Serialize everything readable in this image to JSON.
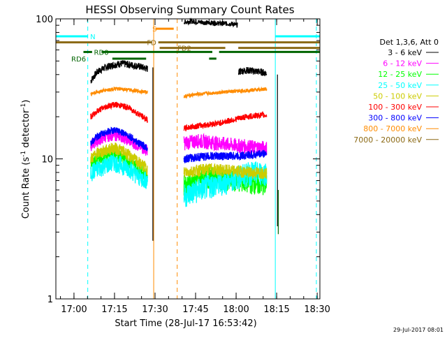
{
  "chart_data": {
    "type": "line",
    "title": "HESSI Observing Summary Count Rates",
    "xlabel": "Start Time (28-Jul-17 16:53:42)",
    "ylabel_main": "Count Rate (s",
    "ylabel_sup1": "-1",
    "ylabel_mid": " detector",
    "ylabel_sup2": "-1",
    "ylabel_end": ")",
    "yscale": "log",
    "ylim": [
      1,
      100
    ],
    "xlim_min": [
      -0.4,
      97.3
    ],
    "x_ticks": [
      {
        "min": 6.3,
        "label": "17:00"
      },
      {
        "min": 21.3,
        "label": "17:15"
      },
      {
        "min": 36.3,
        "label": "17:30"
      },
      {
        "min": 51.3,
        "label": "17:45"
      },
      {
        "min": 66.3,
        "label": "18:00"
      },
      {
        "min": 81.3,
        "label": "18:15"
      },
      {
        "min": 96.3,
        "label": "18:30"
      }
    ],
    "y_ticks": [
      {
        "value": 1,
        "label": "1"
      },
      {
        "value": 10,
        "label": "10"
      },
      {
        "value": 100,
        "label": "100"
      }
    ],
    "legend_header": "Det 1,3,6, Att 0",
    "legend_position": "right",
    "timestamp": "29-Jul-2017 08:01",
    "series": [
      {
        "name": "3 - 6 keV",
        "color": "#000000",
        "segments": [
          {
            "x": [
              12.5,
              15,
              18,
              21,
              24,
              27,
              30,
              33.5
            ],
            "y": [
              36,
              42,
              45,
              47,
              48,
              47,
              46,
              44
            ],
            "noise": 0.06
          },
          {
            "x": [
              47,
              50,
              55,
              60,
              65,
              66.9
            ],
            "y": [
              95,
              96,
              94,
              93,
              92,
              90
            ],
            "noise": 0.04
          },
          {
            "x": [
              67.2,
              70,
              75,
              77.6
            ],
            "y": [
              42,
              43,
              42,
              41
            ],
            "noise": 0.06
          }
        ]
      },
      {
        "name": "6 - 12 keV",
        "color": "#ff00ff",
        "segments": [
          {
            "x": [
              12.5,
              15,
              18,
              21,
              24,
              27,
              30,
              33.5
            ],
            "y": [
              12.5,
              13.5,
              14.5,
              15,
              14.5,
              13.5,
              12.5,
              11.5
            ],
            "noise": 0.1
          },
          {
            "x": [
              47,
              52,
              57,
              62,
              67,
              72,
              77.6
            ],
            "y": [
              13,
              13.5,
              13.2,
              12.8,
              12.5,
              12.2,
              12
            ],
            "noise": 0.12
          }
        ]
      },
      {
        "name": "12 - 25 keV",
        "color": "#00ff00",
        "segments": [
          {
            "x": [
              12.5,
              15,
              18,
              21,
              24,
              27,
              30,
              33.5
            ],
            "y": [
              9,
              10,
              10.5,
              11,
              10.5,
              9.5,
              8.5,
              7.5
            ],
            "noise": 0.12
          },
          {
            "x": [
              47,
              52,
              57,
              62,
              67,
              72,
              77.6
            ],
            "y": [
              6.5,
              7,
              7.5,
              7.2,
              7,
              6.8,
              6.5
            ],
            "noise": 0.18
          }
        ]
      },
      {
        "name": "25 - 50 keV",
        "color": "#00ffff",
        "segments": [
          {
            "x": [
              12.5,
              15,
              18,
              21,
              24,
              27,
              30,
              33.5
            ],
            "y": [
              8,
              8.5,
              9,
              9.5,
              9,
              8.5,
              7.5,
              7
            ],
            "noise": 0.15
          },
          {
            "x": [
              47,
              52,
              57,
              62,
              67,
              72,
              77.6
            ],
            "y": [
              5.5,
              6,
              6.5,
              6.8,
              7.5,
              8,
              8
            ],
            "noise": 0.2
          }
        ]
      },
      {
        "name": "50 - 100 keV",
        "color": "#cccc00",
        "segments": [
          {
            "x": [
              12.5,
              15,
              18,
              21,
              24,
              27,
              30,
              33.5
            ],
            "y": [
              10,
              11,
              11.5,
              12,
              11.5,
              10.5,
              9.5,
              8.5
            ],
            "noise": 0.1
          },
          {
            "x": [
              47,
              52,
              57,
              62,
              67,
              72,
              77.6
            ],
            "y": [
              8,
              8.3,
              8.5,
              8.3,
              8.2,
              8,
              8
            ],
            "noise": 0.1
          }
        ]
      },
      {
        "name": "100 - 300 keV",
        "color": "#ff0000",
        "segments": [
          {
            "x": [
              12.5,
              15,
              18,
              21,
              24,
              27,
              30,
              33.5
            ],
            "y": [
              20,
              22,
              23.5,
              24.5,
              24,
              23,
              21,
              19
            ],
            "noise": 0.05
          },
          {
            "x": [
              47,
              50,
              55,
              60,
              65,
              70,
              75,
              77.6
            ],
            "y": [
              16.5,
              17,
              17.5,
              18,
              19,
              20,
              20.5,
              20.5
            ],
            "noise": 0.05
          }
        ]
      },
      {
        "name": "300 - 800 keV",
        "color": "#0000ff",
        "segments": [
          {
            "x": [
              12.5,
              15,
              18,
              21,
              24,
              27,
              30,
              33.5
            ],
            "y": [
              13,
              14.5,
              15.5,
              16,
              15.5,
              14.5,
              13,
              12
            ],
            "noise": 0.06
          },
          {
            "x": [
              47,
              52,
              57,
              62,
              67,
              72,
              77.6
            ],
            "y": [
              10,
              10.3,
              10.5,
              10.5,
              10.5,
              10.7,
              11
            ],
            "noise": 0.07
          }
        ]
      },
      {
        "name": "800 - 7000 keV",
        "color": "#ff8c00",
        "segments": [
          {
            "x": [
              12.5,
              15,
              18,
              21,
              24,
              27,
              30,
              33.5
            ],
            "y": [
              29,
              30,
              31,
              31.5,
              31.5,
              31,
              30.5,
              30
            ],
            "noise": 0.03
          },
          {
            "x": [
              47,
              52,
              57,
              62,
              67,
              72,
              77.6
            ],
            "y": [
              28,
              29,
              29.5,
              30,
              30.5,
              31,
              31.5
            ],
            "noise": 0.03
          }
        ]
      },
      {
        "name": "7000 - 20000 keV",
        "color": "#8b6914",
        "segments": []
      }
    ],
    "bars": [
      {
        "label": "N",
        "color": "#00ffff",
        "y": 75,
        "ranges": [
          [
            -0.4,
            11.4
          ],
          [
            80.8,
            97.3
          ]
        ],
        "label_min": 12.3
      },
      {
        "label": "S",
        "color": "#ff8c00",
        "y": 85,
        "ranges": [
          [
            36.5,
            43.2
          ]
        ],
        "label_min": 35.3
      },
      {
        "label": "FD",
        "color": "#8b6914",
        "y": 68,
        "ranges": [
          [
            -0.4,
            35
          ],
          [
            37.5,
            97.3
          ]
        ],
        "label_min": 33.3
      },
      {
        "label": "FD2",
        "color": "#8b6914",
        "y": 62,
        "ranges": [
          [
            38,
            62.3
          ],
          [
            67.1,
            97.3
          ]
        ],
        "label_min": 44.6
      },
      {
        "label": "RD0",
        "color": "#006400",
        "y": 58,
        "ranges": [
          [
            9.8,
            13
          ],
          [
            16.5,
            57.5
          ],
          [
            60,
            97.3
          ]
        ],
        "label_min": 13.7
      },
      {
        "label": "RD6",
        "color": "#006400",
        "y": 52,
        "ranges": [
          [
            20.5,
            33
          ],
          [
            56.3,
            59
          ]
        ],
        "label_min": 5.3
      }
    ],
    "vlines": [
      {
        "min": 11.4,
        "color": "#00ffff",
        "dashed": true
      },
      {
        "min": 80.8,
        "color": "#00ffff",
        "dashed": false
      },
      {
        "min": 96,
        "color": "#00ffff",
        "dashed": true
      },
      {
        "min": 35.8,
        "color": "#ff8c00",
        "dashed": false
      },
      {
        "min": 44.5,
        "color": "#ff8c00",
        "dashed": true
      }
    ],
    "drops": [
      {
        "min": 35.5,
        "color": "#000000",
        "from": 45,
        "to": 2.6
      },
      {
        "min": 81.6,
        "color": "#000000",
        "from": 40,
        "to": 3.3
      },
      {
        "min": 81.9,
        "color": "#006400",
        "from": 6,
        "to": 2.9
      }
    ]
  }
}
